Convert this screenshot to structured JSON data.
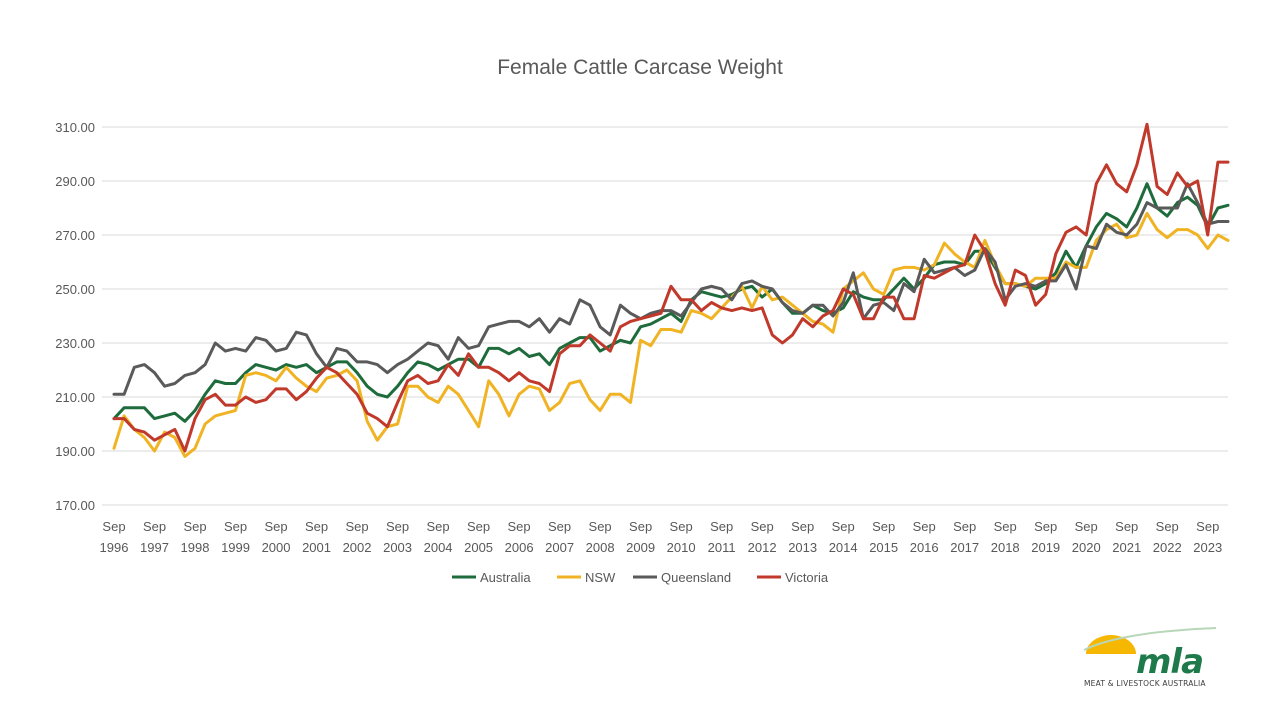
{
  "chart_data": {
    "type": "line",
    "title": "Female Cattle Carcase Weight",
    "xlabel": "",
    "ylabel": "",
    "ylim": [
      170,
      310
    ],
    "yticks": [
      "170.00",
      "190.00",
      "210.00",
      "230.00",
      "250.00",
      "270.00",
      "290.00",
      "310.00"
    ],
    "x_tick_labels": [
      [
        "Sep",
        "1996"
      ],
      [
        "Sep",
        "1997"
      ],
      [
        "Sep",
        "1998"
      ],
      [
        "Sep",
        "1999"
      ],
      [
        "Sep",
        "2000"
      ],
      [
        "Sep",
        "2001"
      ],
      [
        "Sep",
        "2002"
      ],
      [
        "Sep",
        "2003"
      ],
      [
        "Sep",
        "2004"
      ],
      [
        "Sep",
        "2005"
      ],
      [
        "Sep",
        "2006"
      ],
      [
        "Sep",
        "2007"
      ],
      [
        "Sep",
        "2008"
      ],
      [
        "Sep",
        "2009"
      ],
      [
        "Sep",
        "2010"
      ],
      [
        "Sep",
        "2011"
      ],
      [
        "Sep",
        "2012"
      ],
      [
        "Sep",
        "2013"
      ],
      [
        "Sep",
        "2014"
      ],
      [
        "Sep",
        "2015"
      ],
      [
        "Sep",
        "2016"
      ],
      [
        "Sep",
        "2017"
      ],
      [
        "Sep",
        "2018"
      ],
      [
        "Sep",
        "2019"
      ],
      [
        "Sep",
        "2020"
      ],
      [
        "Sep",
        "2021"
      ],
      [
        "Sep",
        "2022"
      ],
      [
        "Sep",
        "2023"
      ]
    ],
    "x_start": "Sep 1996",
    "x_end": "Mar 2024",
    "frequency": "quarterly",
    "grid": "horizontal",
    "legend_position": "bottom",
    "series": [
      {
        "name": "Australia",
        "color": "#1e6b3b",
        "values": [
          202,
          206,
          206,
          206,
          202,
          203,
          204,
          201,
          205,
          211,
          216,
          215,
          215,
          219,
          222,
          221,
          220,
          222,
          221,
          222,
          219,
          221,
          223,
          223,
          219,
          214,
          211,
          210,
          214,
          219,
          223,
          222,
          220,
          222,
          224,
          224,
          221,
          228,
          228,
          226,
          228,
          225,
          226,
          222,
          228,
          230,
          232,
          232,
          227,
          229,
          231,
          230,
          236,
          237,
          239,
          241,
          238,
          246,
          249,
          248,
          247,
          248,
          250,
          251,
          247,
          250,
          245,
          241,
          241,
          244,
          242,
          241,
          243,
          249,
          247,
          246,
          246,
          250,
          254,
          250,
          254,
          259,
          260,
          260,
          259,
          264,
          264,
          258,
          252,
          252,
          251,
          250,
          252,
          256,
          264,
          258,
          266,
          273,
          278,
          276,
          273,
          280,
          289,
          280,
          277,
          282,
          284,
          281,
          273,
          280,
          281
        ]
      },
      {
        "name": "NSW",
        "color": "#f0b323",
        "values": [
          191,
          203,
          198,
          195,
          190,
          197,
          195,
          188,
          191,
          200,
          203,
          204,
          205,
          218,
          219,
          218,
          216,
          221,
          217,
          214,
          212,
          217,
          218,
          220,
          216,
          201,
          194,
          199,
          200,
          214,
          214,
          210,
          208,
          214,
          211,
          205,
          199,
          216,
          211,
          203,
          211,
          214,
          213,
          205,
          208,
          215,
          216,
          209,
          205,
          211,
          211,
          208,
          231,
          229,
          235,
          235,
          234,
          242,
          241,
          239,
          243,
          247,
          251,
          243,
          251,
          246,
          247,
          244,
          241,
          238,
          237,
          234,
          250,
          253,
          256,
          250,
          248,
          257,
          258,
          258,
          257,
          259,
          267,
          263,
          260,
          258,
          268,
          259,
          252,
          252,
          251,
          254,
          254,
          254,
          260,
          258,
          258,
          268,
          272,
          274,
          269,
          270,
          278,
          272,
          269,
          272,
          272,
          270,
          265,
          270,
          268
        ]
      },
      {
        "name": "Queensland",
        "color": "#5a5a5a",
        "values": [
          211,
          211,
          221,
          222,
          219,
          214,
          215,
          218,
          219,
          222,
          230,
          227,
          228,
          227,
          232,
          231,
          227,
          228,
          234,
          233,
          226,
          221,
          228,
          227,
          223,
          223,
          222,
          219,
          222,
          224,
          227,
          230,
          229,
          224,
          232,
          228,
          229,
          236,
          237,
          238,
          238,
          236,
          239,
          234,
          239,
          237,
          246,
          244,
          236,
          233,
          244,
          241,
          239,
          241,
          242,
          242,
          240,
          245,
          250,
          251,
          250,
          246,
          252,
          253,
          251,
          250,
          245,
          242,
          241,
          244,
          244,
          240,
          245,
          256,
          239,
          244,
          245,
          242,
          252,
          249,
          261,
          256,
          257,
          258,
          255,
          257,
          265,
          260,
          246,
          251,
          252,
          251,
          253,
          253,
          259,
          250,
          266,
          265,
          274,
          271,
          270,
          274,
          282,
          280,
          280,
          280,
          289,
          282,
          274,
          275,
          275
        ]
      },
      {
        "name": "Victoria",
        "color": "#c0392b",
        "values": [
          202,
          202,
          198,
          197,
          194,
          196,
          198,
          190,
          202,
          209,
          211,
          207,
          207,
          210,
          208,
          209,
          213,
          213,
          209,
          212,
          217,
          221,
          219,
          215,
          211,
          204,
          202,
          199,
          208,
          216,
          218,
          215,
          216,
          222,
          218,
          226,
          221,
          221,
          219,
          216,
          219,
          216,
          215,
          212,
          226,
          229,
          229,
          233,
          230,
          227,
          236,
          238,
          239,
          240,
          241,
          251,
          246,
          246,
          242,
          245,
          243,
          242,
          243,
          242,
          243,
          233,
          230,
          233,
          239,
          236,
          240,
          242,
          250,
          248,
          239,
          239,
          247,
          247,
          239,
          239,
          255,
          254,
          256,
          258,
          259,
          270,
          264,
          252,
          244,
          257,
          255,
          244,
          248,
          263,
          271,
          273,
          270,
          289,
          296,
          289,
          286,
          296,
          311,
          288,
          285,
          293,
          288,
          290,
          270,
          297,
          297
        ]
      }
    ]
  },
  "logo": {
    "wordmark": "mla",
    "tagline": "MEAT & LIVESTOCK AUSTRALIA"
  }
}
